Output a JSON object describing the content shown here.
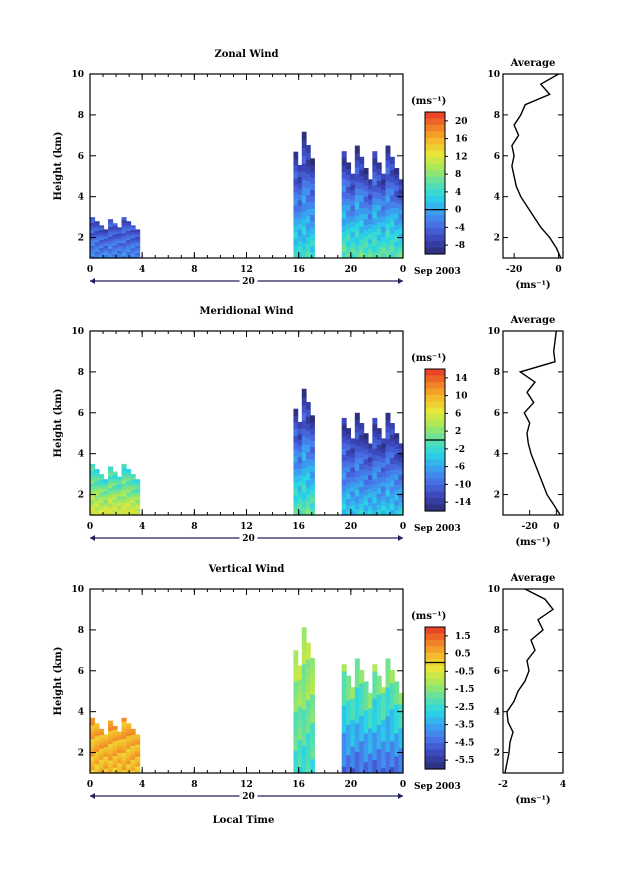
{
  "figure": {
    "date_label": "Sep 2003",
    "day_label": "20",
    "xlabel_bottom": "Local Time",
    "ylabel": "Height (km)",
    "unit_label": "(ms⁻¹)",
    "average_title": "Average"
  },
  "chart_data": [
    {
      "type": "heatmap",
      "title": "Zonal Wind",
      "xlabel": "",
      "ylabel": "Height (km)",
      "x_ticks": [
        "0",
        "4",
        "8",
        "12",
        "16",
        "20",
        "0"
      ],
      "y_ticks": [
        "2",
        "4",
        "6",
        "8",
        "10"
      ],
      "xlim": [
        0,
        24
      ],
      "ylim": [
        1,
        10
      ],
      "colorbar": {
        "unit": "(ms⁻¹)",
        "ticks": [
          "20",
          "16",
          "12",
          "8",
          "4",
          "0",
          "-4",
          "-8"
        ],
        "range": [
          -10,
          22
        ]
      },
      "data_blocks": [
        {
          "t0": 0,
          "t1": 3.8,
          "top_km": 3.0,
          "low_value": -2,
          "high_value": -6
        },
        {
          "t0": 15.6,
          "t1": 17.2,
          "top_km": 7.5,
          "low_value": 4,
          "high_value": -8
        },
        {
          "t0": 19.3,
          "t1": 24,
          "top_km": 6.5,
          "low_value": 6,
          "high_value": -8
        }
      ],
      "average_profile": {
        "xlim": [
          -25,
          2
        ],
        "x_ticks": [
          "-20",
          "0"
        ],
        "y_ticks": [
          "2",
          "4",
          "6",
          "8",
          "10"
        ],
        "height_km": [
          1,
          1.5,
          2,
          2.5,
          3,
          3.5,
          4,
          4.5,
          5,
          5.5,
          6,
          6.5,
          7,
          7.5,
          8,
          8.5,
          9,
          9.5,
          10
        ],
        "value": [
          1,
          -1,
          -4,
          -8,
          -11,
          -14,
          -17,
          -19,
          -20,
          -21,
          -20,
          -21,
          -18,
          -20,
          -17,
          -15,
          -4,
          -8,
          0
        ]
      }
    },
    {
      "type": "heatmap",
      "title": "Meridional Wind",
      "xlabel": "",
      "ylabel": "Height (km)",
      "x_ticks": [
        "0",
        "4",
        "8",
        "12",
        "16",
        "20",
        "0"
      ],
      "y_ticks": [
        "2",
        "4",
        "6",
        "8",
        "10"
      ],
      "xlim": [
        0,
        24
      ],
      "ylim": [
        1,
        10
      ],
      "colorbar": {
        "unit": "(ms⁻¹)",
        "ticks": [
          "14",
          "10",
          "6",
          "2",
          "-2",
          "-6",
          "-10",
          "-14"
        ],
        "range": [
          -16,
          16
        ]
      },
      "data_blocks": [
        {
          "t0": 0,
          "t1": 3.8,
          "top_km": 3.5,
          "low_value": 6,
          "high_value": -2
        },
        {
          "t0": 15.6,
          "t1": 17.2,
          "top_km": 7.5,
          "low_value": 0,
          "high_value": -14
        },
        {
          "t0": 19.3,
          "t1": 24,
          "top_km": 6.0,
          "low_value": -4,
          "high_value": -14
        }
      ],
      "average_profile": {
        "xlim": [
          -40,
          5
        ],
        "x_ticks": [
          "-20",
          "0"
        ],
        "y_ticks": [
          "2",
          "4",
          "6",
          "8",
          "10"
        ],
        "height_km": [
          1,
          1.5,
          2,
          2.5,
          3,
          3.5,
          4,
          4.5,
          5,
          5.5,
          6,
          6.5,
          7,
          7.5,
          8,
          8.5,
          9,
          9.5,
          10
        ],
        "value": [
          3,
          -2,
          -7,
          -10,
          -13,
          -16,
          -19,
          -21,
          -22,
          -20,
          -24,
          -17,
          -22,
          -16,
          -27,
          -1,
          -2,
          -1,
          0
        ]
      }
    },
    {
      "type": "heatmap",
      "title": "Vertical Wind",
      "xlabel": "Local Time",
      "ylabel": "Height (km)",
      "x_ticks": [
        "0",
        "4",
        "8",
        "12",
        "16",
        "20",
        "0"
      ],
      "y_ticks": [
        "2",
        "4",
        "6",
        "8",
        "10"
      ],
      "xlim": [
        0,
        24
      ],
      "ylim": [
        1,
        10
      ],
      "colorbar": {
        "unit": "(ms⁻¹)",
        "ticks": [
          "1.5",
          "0.5",
          "-0.5",
          "-1.5",
          "-2.5",
          "-3.5",
          "-4.5",
          "-5.5"
        ],
        "range": [
          -6,
          2
        ]
      },
      "data_blocks": [
        {
          "t0": 0,
          "t1": 3.8,
          "top_km": 3.7,
          "low_value": 0.3,
          "high_value": 0.6
        },
        {
          "t0": 15.6,
          "t1": 17.2,
          "top_km": 8.5,
          "low_value": -2.5,
          "high_value": -1
        },
        {
          "t0": 19.3,
          "t1": 24,
          "top_km": 6.6,
          "low_value": -4.5,
          "high_value": -1.5
        }
      ],
      "average_profile": {
        "xlim": [
          -2,
          4
        ],
        "x_ticks": [
          "-2",
          "4"
        ],
        "y_ticks": [
          "2",
          "4",
          "6",
          "8",
          "10"
        ],
        "height_km": [
          1,
          1.5,
          2,
          2.5,
          3,
          3.5,
          4,
          4.5,
          5,
          5.5,
          6,
          6.5,
          7,
          7.5,
          8,
          8.5,
          9,
          9.5,
          10
        ],
        "value": [
          -1.8,
          -1.6,
          -1.4,
          -1.3,
          -1.0,
          -1.5,
          -1.6,
          -0.9,
          -0.5,
          0.2,
          0.6,
          0.4,
          1.2,
          0.8,
          2.0,
          1.5,
          3.0,
          2.2,
          0.2
        ]
      }
    }
  ]
}
